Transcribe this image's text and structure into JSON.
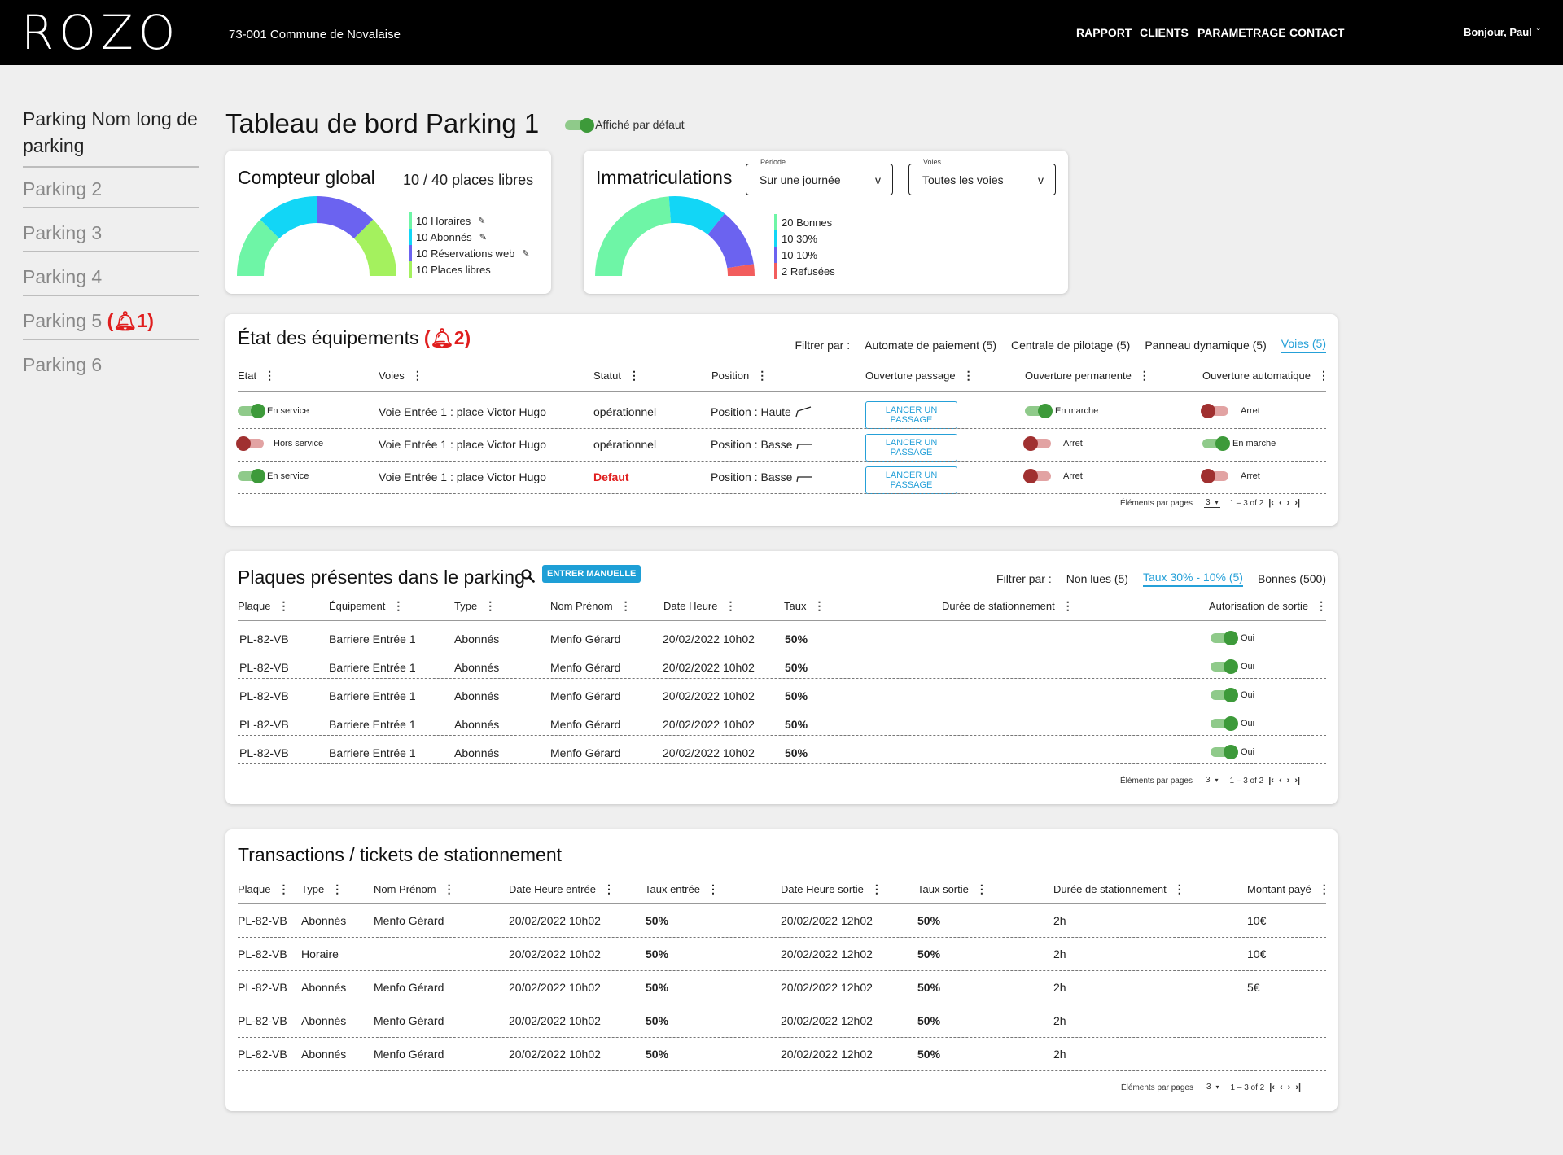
{
  "header": {
    "logo": "ROZO",
    "commune": "73-001 Commune de Novalaise",
    "nav": [
      "RAPPORT",
      "CLIENTS",
      "PARAMETRAGE",
      "CONTACT"
    ],
    "greeting": "Bonjour, Paul",
    "greeting_chevron": "ˇ"
  },
  "sidebar": {
    "items": [
      {
        "label": "Parking Nom long de parking"
      },
      {
        "label": "Parking 2"
      },
      {
        "label": "Parking 3"
      },
      {
        "label": "Parking 4"
      },
      {
        "label": "Parking 5",
        "alarm": "🔔︎1"
      },
      {
        "label": "Parking 6"
      }
    ]
  },
  "page": {
    "title": "Tableau de bord Parking 1",
    "default_label": "Affiché par défaut"
  },
  "counter": {
    "title": "Compteur global",
    "summary": "10 / 40 places libres",
    "legend": [
      "10 Horaires",
      "10 Abonnés",
      "10 Réservations web",
      "10 Places libres"
    ],
    "values": [
      10,
      10,
      10,
      10
    ],
    "colors": [
      "#6ef5a6",
      "#12d6f6",
      "#6b63f0",
      "#a4f15e"
    ],
    "edit_icon": "✎"
  },
  "immat": {
    "title": "Immatriculations",
    "periode_label": "Période",
    "periode_value": "Sur une journée",
    "voies_label": "Voies",
    "voies_value": "Toutes les voies",
    "arrow": "v",
    "legend": [
      "20 Bonnes",
      "10 30%",
      "10 10%",
      "2 Refusées"
    ],
    "values": [
      20,
      10,
      10,
      2
    ],
    "colors": [
      "#6ef5a6",
      "#12d6f6",
      "#6b63f0",
      "#f25d5d"
    ]
  },
  "equip": {
    "title": "État des équipements",
    "alarm": "🔔︎2",
    "filter_label": "Filtrer par :",
    "filters": [
      "Automate de paiement (5)",
      "Centrale de pilotage (5)",
      "Panneau dynamique (5)",
      "Voies (5)"
    ],
    "headers": [
      "Etat",
      "Voies",
      "Statut",
      "Position",
      "Ouverture passage",
      "Ouverture permanente",
      "Ouverture automatique"
    ],
    "dots": "⋮",
    "rows": [
      {
        "etat": "En service",
        "etat_on": true,
        "voie": "Voie Entrée 1 : place Victor Hugo",
        "statut": "opérationnel",
        "defaut": false,
        "position": "Position : Haute",
        "pos_up": true,
        "btn": "LANCER UN PASSAGE",
        "perm": "En marche",
        "perm_on": true,
        "auto": "Arret",
        "auto_on": false
      },
      {
        "etat": "Hors service",
        "etat_on": false,
        "voie": "Voie Entrée 1 : place Victor Hugo",
        "statut": "opérationnel",
        "defaut": false,
        "position": "Position : Basse",
        "pos_up": false,
        "btn": "LANCER UN PASSAGE",
        "perm": "Arret",
        "perm_on": false,
        "auto": "En marche",
        "auto_on": true
      },
      {
        "etat": "En service",
        "etat_on": true,
        "voie": "Voie Entrée 1 : place Victor Hugo",
        "statut": "Defaut",
        "defaut": true,
        "position": "Position : Basse",
        "pos_up": false,
        "btn": "LANCER UN PASSAGE",
        "perm": "Arret",
        "perm_on": false,
        "auto": "Arret",
        "auto_on": false
      }
    ],
    "pager": {
      "label": "Éléments par pages",
      "per_page": "3",
      "range": "1 – 3 of 2"
    }
  },
  "plates": {
    "title": "Plaques présentes dans le parking",
    "manual_btn": "ENTRER MANUELLE",
    "filter_label": "Filtrer par :",
    "filters": [
      "Non lues (5)",
      "Taux 30% - 10% (5)",
      "Bonnes (500)"
    ],
    "headers": [
      "Plaque",
      "Équipement",
      "Type",
      "Nom Prénom",
      "Date Heure",
      "Taux",
      "Durée de stationnement",
      "Autorisation de sortie"
    ],
    "rows": [
      {
        "plaque": "PL-82-VB",
        "equipement": "Barriere Entrée 1",
        "type": "Abonnés",
        "nom": "Menfo Gérard",
        "date": "20/02/2022 10h02",
        "taux": "50%",
        "autorisation": "Oui"
      },
      {
        "plaque": "PL-82-VB",
        "equipement": "Barriere Entrée 1",
        "type": "Abonnés",
        "nom": "Menfo Gérard",
        "date": "20/02/2022 10h02",
        "taux": "50%",
        "autorisation": "Oui"
      },
      {
        "plaque": "PL-82-VB",
        "equipement": "Barriere Entrée 1",
        "type": "Abonnés",
        "nom": "Menfo Gérard",
        "date": "20/02/2022 10h02",
        "taux": "50%",
        "autorisation": "Oui"
      },
      {
        "plaque": "PL-82-VB",
        "equipement": "Barriere Entrée 1",
        "type": "Abonnés",
        "nom": "Menfo Gérard",
        "date": "20/02/2022 10h02",
        "taux": "50%",
        "autorisation": "Oui"
      },
      {
        "plaque": "PL-82-VB",
        "equipement": "Barriere Entrée 1",
        "type": "Abonnés",
        "nom": "Menfo Gérard",
        "date": "20/02/2022 10h02",
        "taux": "50%",
        "autorisation": "Oui"
      }
    ],
    "pager": {
      "label": "Éléments par pages",
      "per_page": "3",
      "range": "1 – 3 of 2"
    }
  },
  "transactions": {
    "title": "Transactions / tickets de stationnement",
    "headers": [
      "Plaque",
      "Type",
      "Nom Prénom",
      "Date Heure entrée",
      "Taux entrée",
      "Date Heure sortie",
      "Taux sortie",
      "Durée de stationnement",
      "Montant payé"
    ],
    "rows": [
      {
        "plaque": "PL-82-VB",
        "type": "Abonnés",
        "nom": "Menfo Gérard",
        "entree": "20/02/2022 10h02",
        "taux_entree": "50%",
        "sortie": "20/02/2022 12h02",
        "taux_sortie": "50%",
        "duree": "2h",
        "montant": "10€"
      },
      {
        "plaque": "PL-82-VB",
        "type": "Horaire",
        "nom": "",
        "entree": "20/02/2022 10h02",
        "taux_entree": "50%",
        "sortie": "20/02/2022 12h02",
        "taux_sortie": "50%",
        "duree": "2h",
        "montant": "10€"
      },
      {
        "plaque": "PL-82-VB",
        "type": "Abonnés",
        "nom": "Menfo Gérard",
        "entree": "20/02/2022 10h02",
        "taux_entree": "50%",
        "sortie": "20/02/2022 12h02",
        "taux_sortie": "50%",
        "duree": "2h",
        "montant": "5€"
      },
      {
        "plaque": "PL-82-VB",
        "type": "Abonnés",
        "nom": "Menfo Gérard",
        "entree": "20/02/2022 10h02",
        "taux_entree": "50%",
        "sortie": "20/02/2022 12h02",
        "taux_sortie": "50%",
        "duree": "2h",
        "montant": ""
      },
      {
        "plaque": "PL-82-VB",
        "type": "Abonnés",
        "nom": "Menfo Gérard",
        "entree": "20/02/2022 10h02",
        "taux_entree": "50%",
        "sortie": "20/02/2022 12h02",
        "taux_sortie": "50%",
        "duree": "2h",
        "montant": ""
      }
    ],
    "pager": {
      "label": "Éléments par pages",
      "per_page": "3",
      "range": "1 – 3 of 2"
    }
  },
  "pager_icons": {
    "first": "|‹",
    "prev": "‹",
    "next": "›",
    "last": "›|"
  }
}
